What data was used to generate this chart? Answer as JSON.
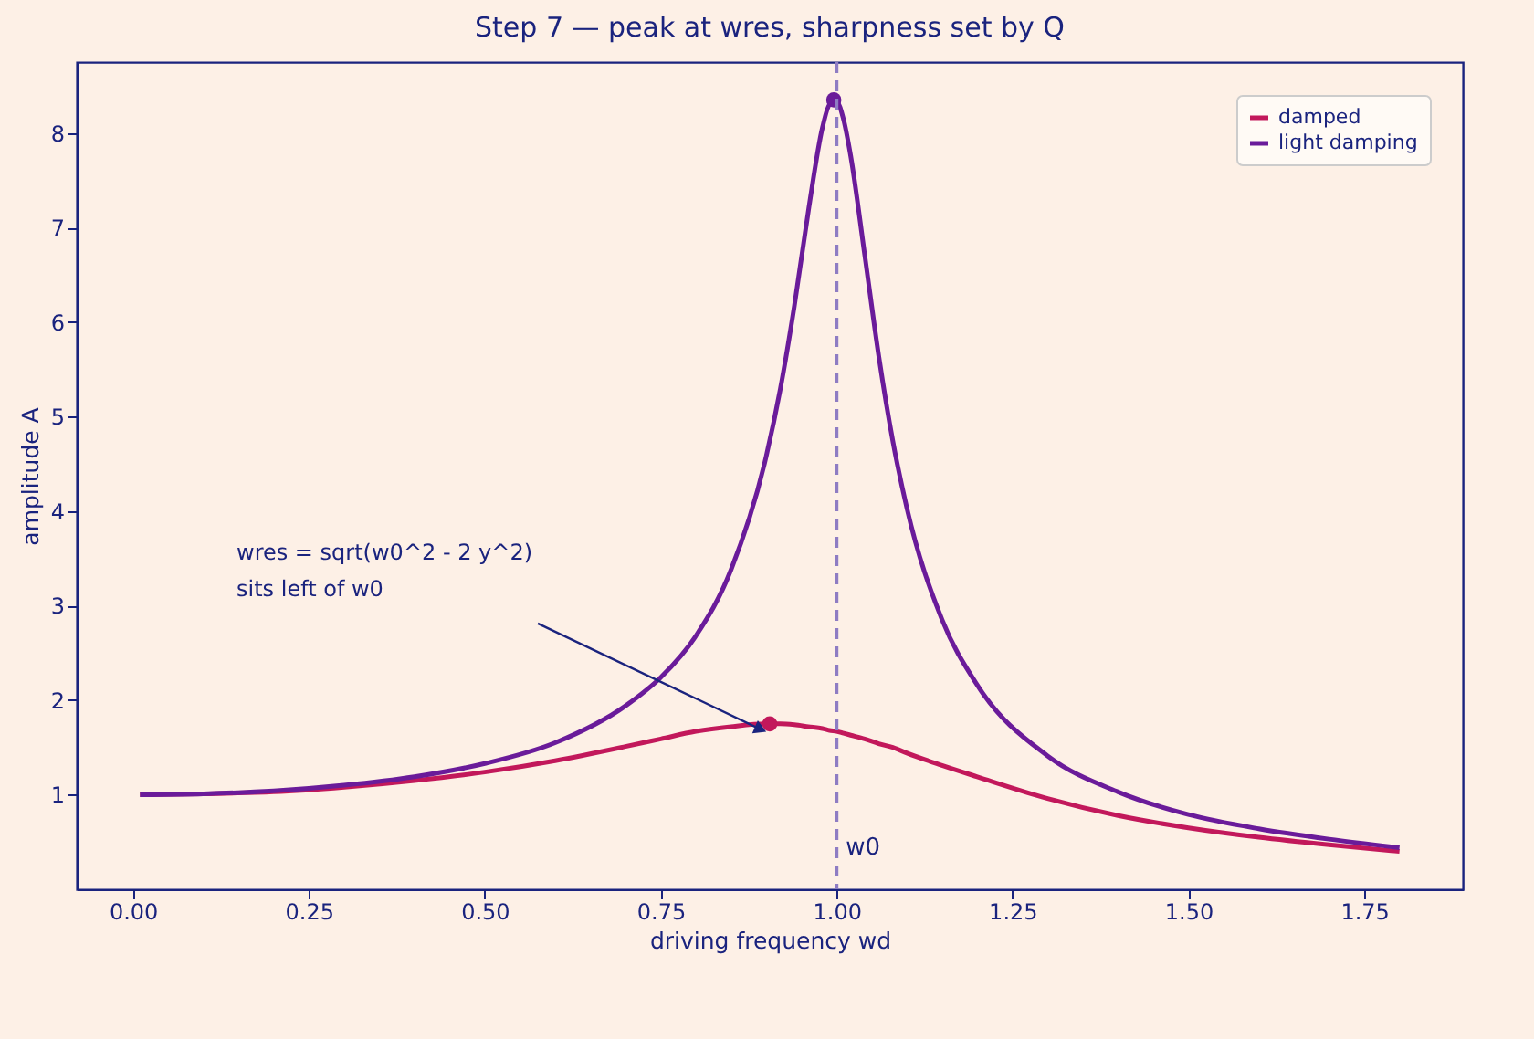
{
  "chart_data": {
    "type": "line",
    "title": "Step 7 — peak at wres, sharpness set by Q",
    "xlabel": "driving frequency wd",
    "ylabel": "amplitude A",
    "x": [
      0.01,
      0.1,
      0.2,
      0.3,
      0.4,
      0.5,
      0.6,
      0.7,
      0.75,
      0.8,
      0.85,
      0.9,
      0.92,
      0.94,
      0.96,
      0.98,
      0.99,
      1.0,
      1.01,
      1.02,
      1.04,
      1.06,
      1.08,
      1.1,
      1.15,
      1.2,
      1.3,
      1.4,
      1.5,
      1.6,
      1.7,
      1.8
    ],
    "series": [
      {
        "name": "damped",
        "color": "#c2185b",
        "values": [
          1.0,
          1.01,
          1.03,
          1.08,
          1.15,
          1.24,
          1.36,
          1.51,
          1.59,
          1.67,
          1.72,
          1.75,
          1.75,
          1.74,
          1.72,
          1.7,
          1.68,
          1.67,
          1.65,
          1.63,
          1.59,
          1.54,
          1.5,
          1.44,
          1.31,
          1.19,
          0.96,
          0.78,
          0.65,
          0.55,
          0.47,
          0.4
        ]
      },
      {
        "name": "light damping",
        "color": "#6a1b9a",
        "values": [
          1.0,
          1.01,
          1.04,
          1.1,
          1.19,
          1.33,
          1.55,
          1.94,
          2.24,
          2.68,
          3.38,
          4.58,
          5.29,
          6.17,
          7.18,
          8.06,
          8.3,
          8.33,
          8.14,
          7.76,
          6.71,
          5.64,
          4.74,
          4.03,
          2.85,
          2.16,
          1.41,
          1.03,
          0.79,
          0.64,
          0.53,
          0.44
        ]
      },
      {
        "type": "scatter",
        "color": "#c2185b",
        "x": [
          0.905
        ],
        "values": [
          1.75
        ]
      },
      {
        "type": "scatter",
        "color": "#6a1b9a",
        "x": [
          0.996
        ],
        "values": [
          8.35
        ]
      }
    ],
    "xlim": [
      -0.08,
      1.89
    ],
    "xticks": [
      {
        "value": 0,
        "label": "0.00"
      },
      0.25,
      {
        "value": 0.5,
        "label": "0.50"
      },
      0.75,
      {
        "value": 1,
        "label": "1.00"
      },
      1.25,
      {
        "value": 1.5,
        "label": "1.50"
      },
      1.75
    ],
    "ylim": [
      0,
      8.75
    ],
    "yticks": [
      1,
      2,
      3,
      4,
      5,
      6,
      7,
      8
    ],
    "ref_lines": [
      {
        "axis": "x",
        "value": 1,
        "label": "w0",
        "color": "#8e7cc3",
        "line_style": "dashed"
      }
    ],
    "annotations": [
      {
        "text": "wres = sqrt(w0^2 - 2 y^2)\nsits left of w0",
        "x": 0.905,
        "y": 1.75
      }
    ],
    "legend": "top right",
    "grid": false,
    "line_style": "solid"
  }
}
